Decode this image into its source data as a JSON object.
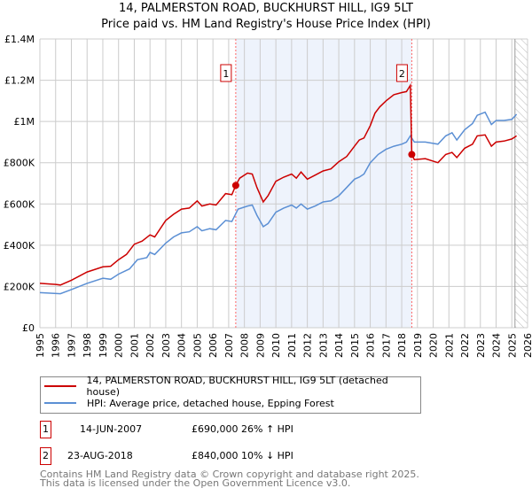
{
  "title_line1": "14, PALMERSTON ROAD, BUCKHURST HILL, IG9 5LT",
  "title_line2": "Price paid vs. HM Land Registry's House Price Index (HPI)",
  "legend": {
    "property": "14, PALMERSTON ROAD, BUCKHURST HILL, IG9 5LT (detached house)",
    "hpi": "HPI: Average price, detached house, Epping Forest"
  },
  "sales": [
    {
      "num": "1",
      "date": "14-JUN-2007",
      "price": "£690,000",
      "delta": "26% ↑ HPI"
    },
    {
      "num": "2",
      "date": "23-AUG-2018",
      "price": "£840,000",
      "delta": "10% ↓ HPI"
    }
  ],
  "footer": {
    "line1": "Contains HM Land Registry data © Crown copyright and database right 2025.",
    "line2": "This data is licensed under the Open Government Licence v3.0."
  },
  "colors": {
    "property": "#cc0000",
    "hpi": "#5b8fd4",
    "shade": "#eef3fc"
  },
  "chart_data": {
    "type": "line",
    "xlim": [
      1995,
      2026
    ],
    "ylim": [
      0,
      1400000
    ],
    "yticks": [
      {
        "v": 0,
        "label": "£0"
      },
      {
        "v": 200000,
        "label": "£200K"
      },
      {
        "v": 400000,
        "label": "£400K"
      },
      {
        "v": 600000,
        "label": "£600K"
      },
      {
        "v": 800000,
        "label": "£800K"
      },
      {
        "v": 1000000,
        "label": "£1M"
      },
      {
        "v": 1200000,
        "label": "£1.2M"
      },
      {
        "v": 1400000,
        "label": "£1.4M"
      }
    ],
    "xticks": [
      "1995",
      "1996",
      "1997",
      "1998",
      "1999",
      "2000",
      "2001",
      "2002",
      "2003",
      "2004",
      "2005",
      "2006",
      "2007",
      "2008",
      "2009",
      "2010",
      "2011",
      "2012",
      "2013",
      "2014",
      "2015",
      "2016",
      "2017",
      "2018",
      "2019",
      "2020",
      "2021",
      "2022",
      "2023",
      "2024",
      "2025",
      "2026"
    ],
    "grid": true,
    "shaded_period": [
      2007.45,
      2018.64
    ],
    "forecast_from": 2025.2,
    "markers": [
      {
        "label": "1",
        "x": 2007.45,
        "y": 690000
      },
      {
        "label": "2",
        "x": 2018.64,
        "y": 840000
      }
    ],
    "series": [
      {
        "name": "property",
        "x": [
          1995,
          1996,
          1996.3,
          1997,
          1998,
          1999,
          1999.5,
          2000,
          2000.5,
          2001,
          2001.5,
          2002,
          2002.3,
          2003,
          2003.5,
          2004,
          2004.5,
          2005,
          2005.3,
          2005.8,
          2006.2,
          2006.8,
          2007.2,
          2007.45,
          2007.7,
          2008.2,
          2008.5,
          2008.8,
          2009.2,
          2009.5,
          2010,
          2010.5,
          2011,
          2011.3,
          2011.6,
          2012,
          2012.5,
          2013,
          2013.5,
          2014,
          2014.5,
          2015,
          2015.3,
          2015.6,
          2016,
          2016.3,
          2016.6,
          2017,
          2017.5,
          2018,
          2018.3,
          2018.55,
          2018.64,
          2018.8,
          2019.5,
          2020.3,
          2020.8,
          2021.2,
          2021.5,
          2022,
          2022.5,
          2022.8,
          2023.3,
          2023.7,
          2024,
          2024.5,
          2025,
          2025.3
        ],
        "values": [
          215000,
          210000,
          207000,
          230000,
          270000,
          295000,
          298000,
          330000,
          355000,
          405000,
          420000,
          450000,
          440000,
          520000,
          550000,
          575000,
          580000,
          615000,
          590000,
          600000,
          595000,
          650000,
          645000,
          690000,
          725000,
          750000,
          745000,
          680000,
          610000,
          640000,
          710000,
          730000,
          745000,
          725000,
          755000,
          720000,
          740000,
          760000,
          770000,
          805000,
          830000,
          880000,
          910000,
          920000,
          980000,
          1040000,
          1070000,
          1100000,
          1130000,
          1140000,
          1145000,
          1175000,
          840000,
          815000,
          820000,
          800000,
          840000,
          850000,
          825000,
          870000,
          890000,
          930000,
          935000,
          880000,
          900000,
          905000,
          915000,
          930000
        ]
      },
      {
        "name": "hpi",
        "x": [
          1995,
          1996.3,
          1997,
          1998,
          1999,
          1999.5,
          2000,
          2000.7,
          2001.2,
          2001.8,
          2002,
          2002.3,
          2003,
          2003.5,
          2004,
          2004.5,
          2005,
          2005.3,
          2005.8,
          2006.2,
          2006.8,
          2007.2,
          2007.6,
          2008.2,
          2008.5,
          2008.8,
          2009.2,
          2009.5,
          2010,
          2010.5,
          2011,
          2011.3,
          2011.6,
          2012,
          2012.5,
          2013,
          2013.5,
          2014,
          2014.5,
          2015,
          2015.3,
          2015.6,
          2016,
          2016.5,
          2017,
          2017.5,
          2018,
          2018.3,
          2018.55,
          2018.8,
          2019.5,
          2020.3,
          2020.8,
          2021.2,
          2021.5,
          2022,
          2022.5,
          2022.8,
          2023.3,
          2023.7,
          2024,
          2024.5,
          2025,
          2025.3
        ],
        "values": [
          170000,
          165000,
          185000,
          215000,
          240000,
          235000,
          260000,
          285000,
          330000,
          340000,
          365000,
          355000,
          410000,
          440000,
          460000,
          465000,
          490000,
          470000,
          480000,
          475000,
          520000,
          515000,
          575000,
          590000,
          595000,
          545000,
          490000,
          505000,
          560000,
          580000,
          595000,
          580000,
          600000,
          575000,
          590000,
          610000,
          615000,
          640000,
          680000,
          720000,
          730000,
          745000,
          800000,
          840000,
          865000,
          880000,
          890000,
          900000,
          930000,
          900000,
          900000,
          890000,
          930000,
          945000,
          910000,
          960000,
          990000,
          1030000,
          1045000,
          985000,
          1005000,
          1005000,
          1010000,
          1035000
        ]
      }
    ]
  }
}
